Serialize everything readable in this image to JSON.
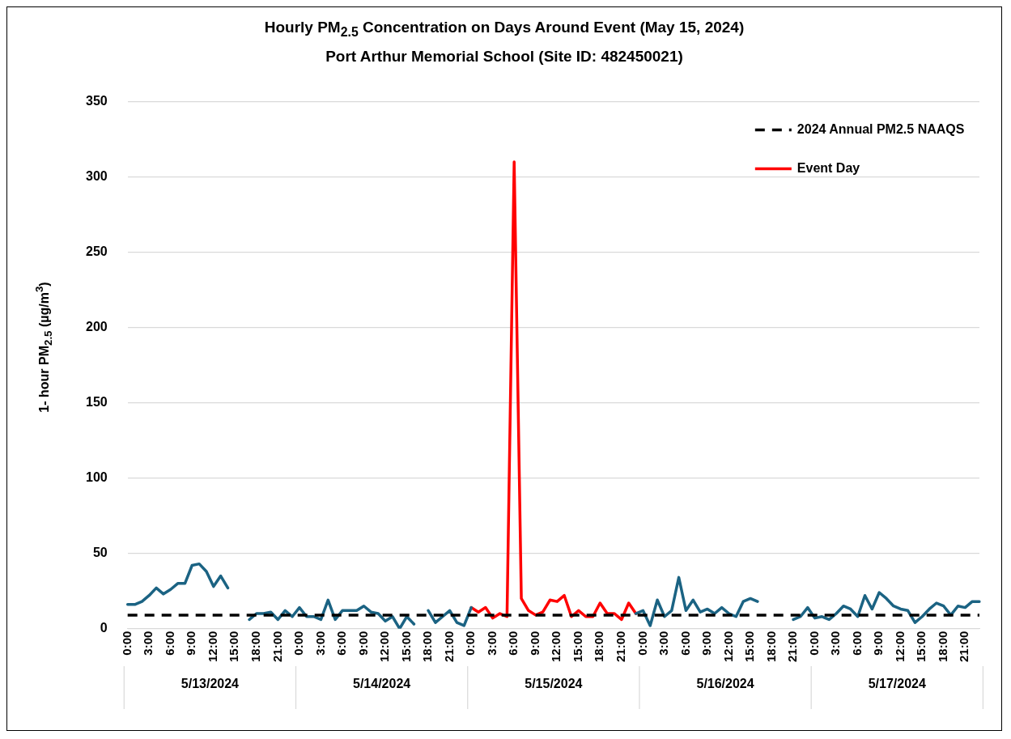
{
  "chart_data": {
    "type": "line",
    "title": "Hourly PM$_{2.5}$ Concentration on Days Around Event (May 15, 2024)",
    "subtitle": "Port Arthur Memorial School (Site ID: 482450021)",
    "ylabel": "1- hour PM$_{2.5}$  (µg/m$^{3}$)",
    "categories": [
      "0:00",
      null,
      null,
      "3:00",
      null,
      null,
      "6:00",
      null,
      null,
      "9:00",
      null,
      null,
      "12:00",
      null,
      null,
      "15:00",
      null,
      null,
      "18:00",
      null,
      null,
      "21:00",
      null,
      null,
      "0:00",
      null,
      null,
      "3:00",
      null,
      null,
      "6:00",
      null,
      null,
      "9:00",
      null,
      null,
      "12:00",
      null,
      null,
      "15:00",
      null,
      null,
      "18:00",
      null,
      null,
      "21:00",
      null,
      null,
      "0:00",
      null,
      null,
      "3:00",
      null,
      null,
      "6:00",
      null,
      null,
      "9:00",
      null,
      null,
      "12:00",
      null,
      null,
      "15:00",
      null,
      null,
      "18:00",
      null,
      null,
      "21:00",
      null,
      null,
      "0:00",
      null,
      null,
      "3:00",
      null,
      null,
      "6:00",
      null,
      null,
      "9:00",
      null,
      null,
      "12:00",
      null,
      null,
      "15:00",
      null,
      null,
      "18:00",
      null,
      null,
      "21:00",
      null,
      null,
      "0:00",
      null,
      null,
      "3:00",
      null,
      null,
      "6:00",
      null,
      null,
      "9:00",
      null,
      null,
      "12:00",
      null,
      null,
      "15:00",
      null,
      null,
      "18:00",
      null,
      null,
      "21:00",
      null,
      null
    ],
    "series": [
      {
        "color": "#1b6383",
        "values": [
          16,
          16,
          18,
          22,
          27,
          23,
          26,
          30,
          30,
          42,
          43,
          38,
          28,
          35,
          27,
          null,
          null,
          6,
          10,
          10,
          11,
          6,
          12,
          8,
          14,
          8,
          8,
          6,
          19,
          6,
          12,
          12,
          12,
          15,
          11,
          10,
          5,
          8,
          0,
          8,
          3,
          null,
          12,
          4,
          8,
          12,
          4,
          2,
          14,
          null,
          null,
          null,
          null,
          null,
          null,
          null,
          null,
          null,
          null,
          null,
          null,
          null,
          null,
          null,
          null,
          null,
          null,
          null,
          null,
          null,
          null,
          10,
          12,
          2,
          19,
          8,
          12,
          34,
          12,
          19,
          11,
          13,
          10,
          14,
          10,
          8,
          18,
          20,
          18,
          null,
          null,
          null,
          null,
          6,
          8,
          14,
          7,
          8,
          6,
          10,
          15,
          13,
          8,
          22,
          13,
          24,
          20,
          15,
          13,
          12,
          4,
          8,
          13,
          17,
          15,
          9,
          15,
          14,
          18,
          18
        ]
      },
      {
        "name": "Event Day",
        "color": "#ff0000",
        "values": [
          null,
          null,
          null,
          null,
          null,
          null,
          null,
          null,
          null,
          null,
          null,
          null,
          null,
          null,
          null,
          null,
          null,
          null,
          null,
          null,
          null,
          null,
          null,
          null,
          null,
          null,
          null,
          null,
          null,
          null,
          null,
          null,
          null,
          null,
          null,
          null,
          null,
          null,
          null,
          null,
          null,
          null,
          null,
          null,
          null,
          null,
          null,
          null,
          14,
          11,
          14,
          7,
          10,
          8,
          310,
          20,
          12,
          9,
          11,
          19,
          18,
          22,
          8,
          12,
          8,
          8,
          17,
          10,
          10,
          6,
          17,
          10,
          null,
          null,
          null,
          null,
          null,
          null,
          null,
          null,
          null,
          null,
          null,
          null,
          null,
          null,
          null,
          null,
          null,
          null,
          null,
          null,
          null,
          null,
          null,
          null,
          null,
          null,
          null,
          null,
          null,
          null,
          null,
          null,
          null,
          null,
          null,
          null,
          null,
          null,
          null,
          null,
          null,
          null,
          null,
          null,
          null,
          null,
          null,
          null
        ]
      }
    ],
    "ref_lines": [
      {
        "axis": "y",
        "value": 9,
        "label": "2024 Annual PM2.5 NAAQS",
        "color": "#000000",
        "line_style": "dashed"
      }
    ],
    "annotations": [
      "5/13/2024",
      "5/14/2024",
      "5/15/2024",
      "5/16/2024",
      "5/17/2024"
    ],
    "ylim": [
      0,
      350
    ],
    "yticks": [
      0,
      50,
      100,
      150,
      200,
      250,
      300,
      350
    ],
    "grid": "y",
    "legend": "top right",
    "marker": "none",
    "line_style": "solid"
  }
}
